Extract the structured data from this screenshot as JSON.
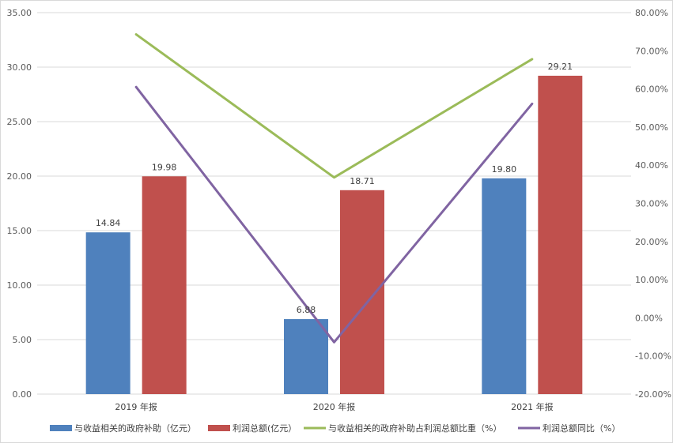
{
  "chart_data": {
    "type": "bar",
    "categories": [
      "2019 年报",
      "2020 年报",
      "2021 年报"
    ],
    "series": [
      {
        "name": "与收益相关的政府补助（亿元）",
        "kind": "bar",
        "axis": "left",
        "color": "#4f81bd",
        "values": [
          14.84,
          6.88,
          19.8
        ],
        "labels": [
          "14.84",
          "6.88",
          "19.80"
        ]
      },
      {
        "name": "利润总额(亿元）",
        "kind": "bar",
        "axis": "left",
        "color": "#c0504d",
        "values": [
          19.98,
          18.71,
          29.21
        ],
        "labels": [
          "19.98",
          "18.71",
          "29.21"
        ]
      },
      {
        "name": "与收益相关的政府补助占利润总额比重（%）",
        "kind": "line",
        "axis": "right",
        "color": "#9bbb59",
        "values": [
          74.3,
          36.8,
          67.8
        ]
      },
      {
        "name": "利润总额同比（%）",
        "kind": "line",
        "axis": "right",
        "color": "#8064a2",
        "values": [
          60.5,
          -6.4,
          56.1
        ]
      }
    ],
    "left_axis": {
      "ylim": [
        0,
        35
      ],
      "ticks": [
        "0.00",
        "5.00",
        "10.00",
        "15.00",
        "20.00",
        "25.00",
        "30.00",
        "35.00"
      ]
    },
    "right_axis": {
      "ylim": [
        -20,
        80
      ],
      "ticks": [
        "-20.00%",
        "-10.00%",
        "0.00%",
        "10.00%",
        "20.00%",
        "30.00%",
        "40.00%",
        "50.00%",
        "60.00%",
        "70.00%",
        "80.00%"
      ]
    },
    "grid": true,
    "legend_position": "bottom"
  }
}
